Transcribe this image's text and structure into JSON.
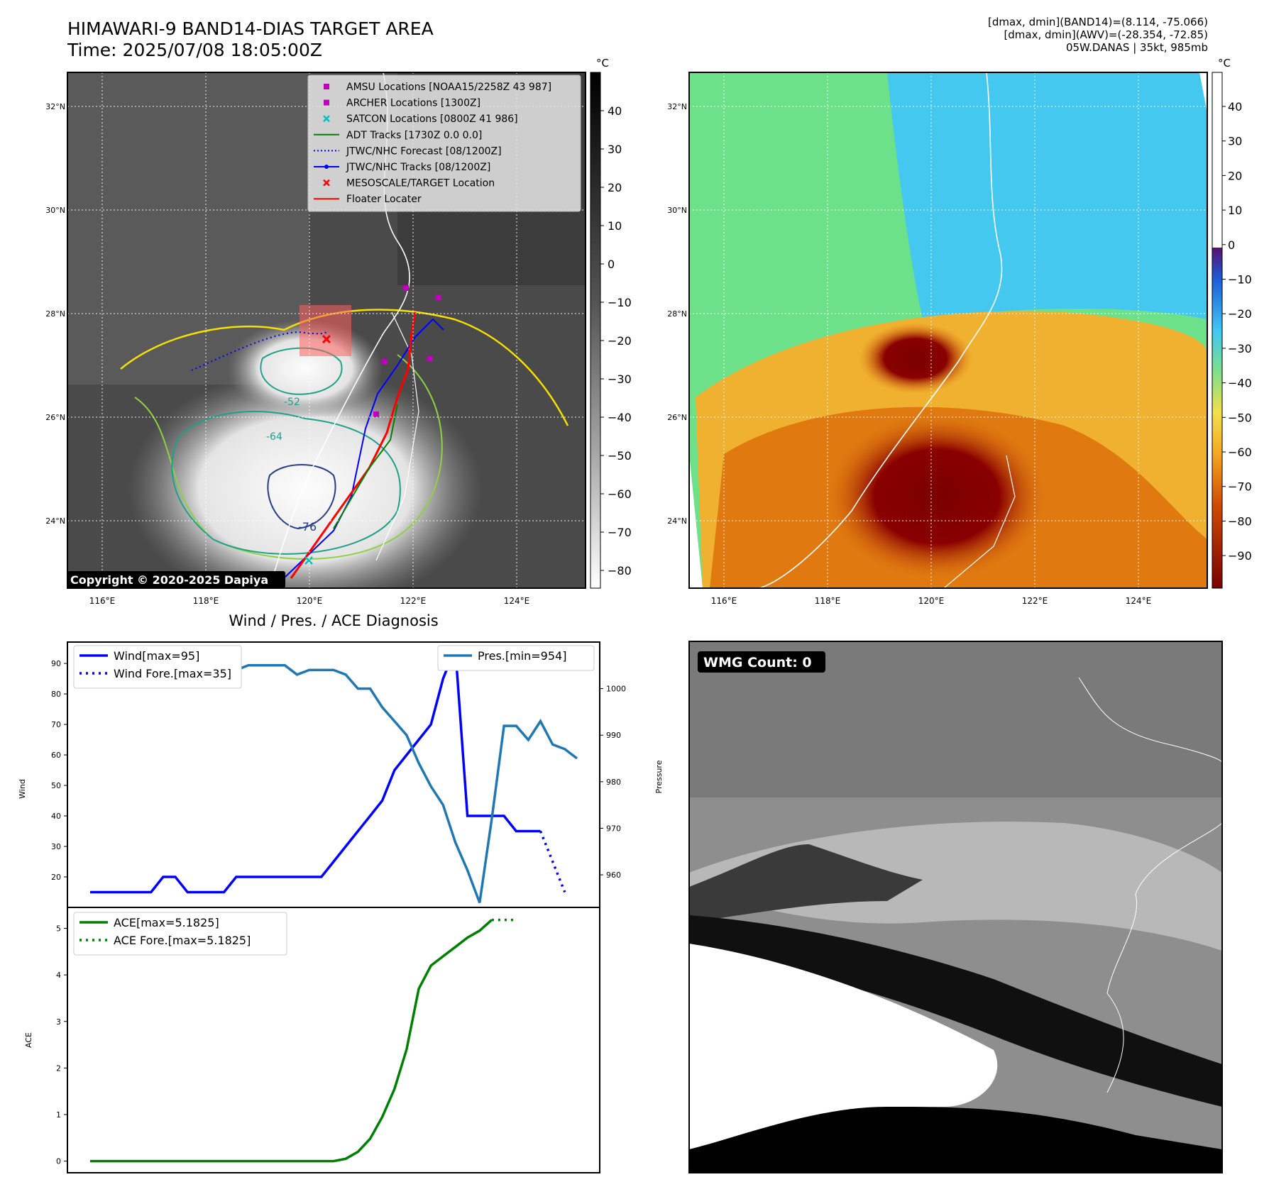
{
  "header": {
    "title_line1": "HIMAWARI-9 BAND14-DIAS TARGET AREA",
    "title_line2": "Time: 2025/07/08 18:05:00Z",
    "info_line1": "[dmax, dmin](BAND14)=(8.114, -75.066)",
    "info_line2": "[dmax, dmin](AWV)=(-28.354, -72.85)",
    "info_line3": "05W.DANAS | 35kt, 985mb"
  },
  "map_common": {
    "lat_labels": [
      "32°N",
      "30°N",
      "28°N",
      "26°N",
      "24°N"
    ],
    "lon_labels": [
      "116°E",
      "118°E",
      "120°E",
      "122°E",
      "124°E"
    ],
    "colorbar_unit": "°C"
  },
  "ir_map": {
    "copyright": "Copyright © 2020-2025 Dapiya",
    "contour_labels": [
      "-52",
      "-64",
      "-76"
    ],
    "colorbar_ticks": [
      "40",
      "30",
      "20",
      "10",
      "0",
      "−10",
      "−20",
      "−30",
      "−40",
      "−50",
      "−60",
      "−70",
      "−80"
    ],
    "legend": [
      {
        "label": "AMSU Locations [NOAA15/2258Z 43 987]",
        "color": "#bf00bf",
        "marker": "square"
      },
      {
        "label": "ARCHER Locations [1300Z]",
        "color": "#bf00bf",
        "marker": "square"
      },
      {
        "label": "SATCON Locations [0800Z 41 986]",
        "color": "#00bfbf",
        "marker": "x"
      },
      {
        "label": "ADT Tracks [1730Z 0.0 0.0]",
        "color": "#008000",
        "marker": "line"
      },
      {
        "label": "JTWC/NHC Forecast [08/1200Z]",
        "color": "#0000ff",
        "marker": "dotted"
      },
      {
        "label": "JTWC/NHC Tracks [08/1200Z]",
        "color": "#0000ff",
        "marker": "line-dot"
      },
      {
        "label": "MESOSCALE/TARGET Location",
        "color": "#ff0000",
        "marker": "x"
      },
      {
        "label": "Floater Locater",
        "color": "#ff0000",
        "marker": "line"
      }
    ]
  },
  "wv_map": {
    "colorbar_ticks": [
      "40",
      "30",
      "20",
      "10",
      "0",
      "−10",
      "−20",
      "−30",
      "−40",
      "−50",
      "−60",
      "−70",
      "−80",
      "−90"
    ]
  },
  "wmg_panel": {
    "badge": "WMG Count: 0"
  },
  "diagnosis": {
    "title": "Wind / Pres. / ACE Diagnosis"
  },
  "chart_data": [
    {
      "type": "line",
      "panel": "wind-pressure",
      "ylabel": "Wind",
      "y2label": "Pressure",
      "ylim": [
        10,
        97
      ],
      "y2lim": [
        953,
        1010
      ],
      "yticks": [
        20,
        30,
        40,
        50,
        60,
        70,
        80,
        90
      ],
      "y2ticks": [
        960,
        970,
        980,
        990,
        1000
      ],
      "legend_left": "top-left",
      "legend_right": "top-right",
      "series": [
        {
          "name": "Wind[max=95]",
          "axis": "left",
          "color": "#0000ff",
          "style": "solid",
          "values": [
            15,
            15,
            15,
            15,
            15,
            15,
            20,
            20,
            15,
            15,
            15,
            15,
            20,
            20,
            20,
            20,
            20,
            20,
            20,
            20,
            25,
            30,
            35,
            40,
            45,
            55,
            60,
            65,
            70,
            85,
            95,
            40,
            40,
            40,
            40,
            35,
            35,
            35
          ]
        },
        {
          "name": "Wind Fore.[max=35]",
          "axis": "left",
          "color": "#0000ff",
          "style": "dotted",
          "start_index": 37,
          "values": [
            35,
            25,
            15
          ]
        },
        {
          "name": "Pres.[min=954]",
          "axis": "right",
          "color": "#1f77b4",
          "style": "solid",
          "values": [
            1006,
            1006,
            1006,
            1006,
            1004,
            1004,
            1004,
            1004,
            1004,
            1004,
            1005,
            1005,
            1004,
            1005,
            1005,
            1005,
            1005,
            1003,
            1004,
            1004,
            1004,
            1003,
            1000,
            1000,
            996,
            993,
            990,
            984,
            979,
            975,
            967,
            961,
            954,
            972,
            992,
            992,
            989,
            993,
            988,
            987,
            985
          ]
        }
      ]
    },
    {
      "type": "line",
      "panel": "ace",
      "ylabel": "ACE",
      "ylim": [
        -0.25,
        5.45
      ],
      "yticks": [
        0,
        1,
        2,
        3,
        4,
        5
      ],
      "legend": "top-left",
      "series": [
        {
          "name": "ACE[max=5.1825]",
          "color": "#008000",
          "style": "solid",
          "values": [
            0,
            0,
            0,
            0,
            0,
            0,
            0,
            0,
            0,
            0,
            0,
            0,
            0,
            0,
            0,
            0,
            0,
            0,
            0,
            0,
            0,
            0.05,
            0.2,
            0.48,
            0.95,
            1.55,
            2.4,
            3.7,
            4.2,
            4.4,
            4.6,
            4.8,
            4.95,
            5.1825
          ]
        },
        {
          "name": "ACE Fore.[max=5.1825]",
          "color": "#008000",
          "style": "dotted",
          "start_index": 33,
          "values": [
            5.1825,
            5.1825,
            5.1825
          ]
        }
      ]
    }
  ]
}
